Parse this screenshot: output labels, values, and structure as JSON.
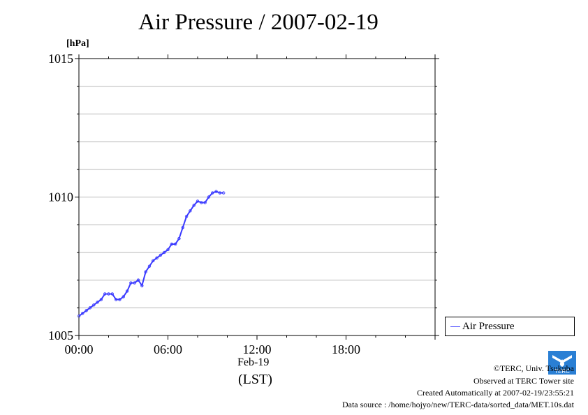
{
  "chart_data": {
    "type": "line",
    "title": "Air Pressure / 2007-02-19",
    "ylabel": "[hPa]",
    "ylim": [
      1005,
      1015
    ],
    "y_ticks": [
      "1005",
      "1010",
      "1015"
    ],
    "xlim": [
      0,
      24
    ],
    "x_ticks": [
      "00:00",
      "06:00",
      "12:00",
      "18:00"
    ],
    "x_tick_hours": [
      0,
      6,
      12,
      18
    ],
    "date_label": "Feb-19",
    "timezone_label": "(LST)",
    "grid": "horizontal",
    "legend_position": "right",
    "series": [
      {
        "name": "Air Pressure",
        "color": "#3a3aff",
        "x": [
          0.0,
          0.25,
          0.5,
          0.75,
          1.0,
          1.25,
          1.5,
          1.75,
          2.0,
          2.25,
          2.5,
          2.75,
          3.0,
          3.25,
          3.5,
          3.75,
          4.0,
          4.25,
          4.5,
          4.75,
          5.0,
          5.25,
          5.5,
          5.75,
          6.0,
          6.25,
          6.5,
          6.75,
          7.0,
          7.25,
          7.5,
          7.75,
          8.0,
          8.25,
          8.5,
          8.75,
          9.0,
          9.25,
          9.5,
          9.75
        ],
        "values": [
          1005.7,
          1005.8,
          1005.9,
          1006.0,
          1006.1,
          1006.2,
          1006.3,
          1006.5,
          1006.5,
          1006.5,
          1006.3,
          1006.3,
          1006.4,
          1006.6,
          1006.9,
          1006.9,
          1007.0,
          1006.8,
          1007.3,
          1007.5,
          1007.7,
          1007.8,
          1007.9,
          1008.0,
          1008.1,
          1008.3,
          1008.3,
          1008.5,
          1008.9,
          1009.3,
          1009.5,
          1009.7,
          1009.85,
          1009.8,
          1009.8,
          1010.0,
          1010.15,
          1010.2,
          1010.15,
          1010.15
        ]
      }
    ]
  },
  "credits": {
    "copyright": "©TERC, Univ. Tsukuba",
    "observed": "Observed at TERC Tower site",
    "created": "Created Automatically at 2007-02-19/23:55:21",
    "source": "Data source : /home/hojyo/new/TERC-data/sorted_data/MET.10s.dat"
  },
  "logo": {
    "text": "TERC",
    "color": "#2a7fd4"
  }
}
